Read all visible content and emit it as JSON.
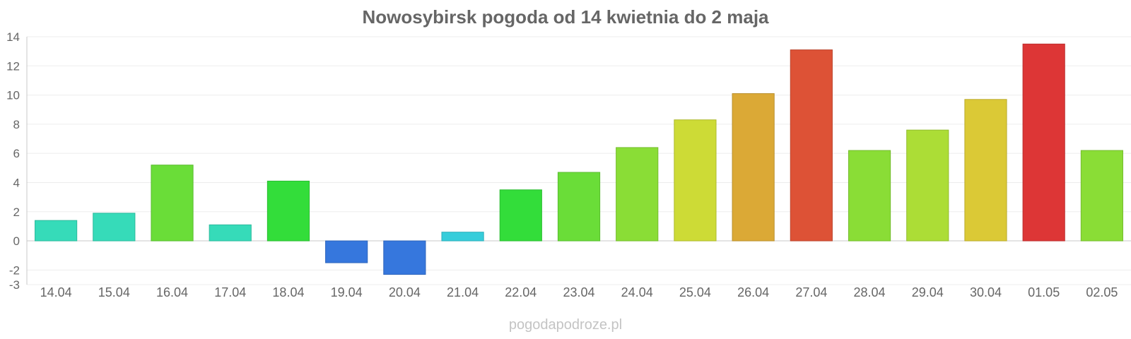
{
  "chart_data": {
    "type": "bar",
    "title": "Nowosybirsk pogoda od 14 kwietnia do 2 maja",
    "source": "pogodapodroze.pl",
    "xlabel": "",
    "ylabel": "",
    "ylim": [
      -3,
      14
    ],
    "yticks": [
      14,
      12,
      10,
      8,
      6,
      4,
      2,
      0,
      -2,
      -3
    ],
    "grid": true,
    "legend": "none",
    "categories": [
      "14.04",
      "15.04",
      "16.04",
      "17.04",
      "18.04",
      "19.04",
      "20.04",
      "21.04",
      "22.04",
      "23.04",
      "24.04",
      "25.04",
      "26.04",
      "27.04",
      "28.04",
      "29.04",
      "30.04",
      "01.05",
      "02.05"
    ],
    "values": [
      1.4,
      1.9,
      5.2,
      1.1,
      4.1,
      -1.5,
      -2.3,
      0.6,
      3.5,
      4.7,
      6.4,
      8.3,
      10.1,
      13.1,
      6.2,
      7.6,
      9.7,
      13.5,
      6.2
    ],
    "colors": [
      "#36dbb9",
      "#36dbb9",
      "#6add38",
      "#36dbb9",
      "#33dd3a",
      "#3677dd",
      "#3677dd",
      "#36cddb",
      "#33dd3a",
      "#6add38",
      "#8add36",
      "#cddb36",
      "#dba936",
      "#dd5236",
      "#8add36",
      "#acdd36",
      "#dbc936",
      "#dd3636",
      "#8add36"
    ]
  }
}
